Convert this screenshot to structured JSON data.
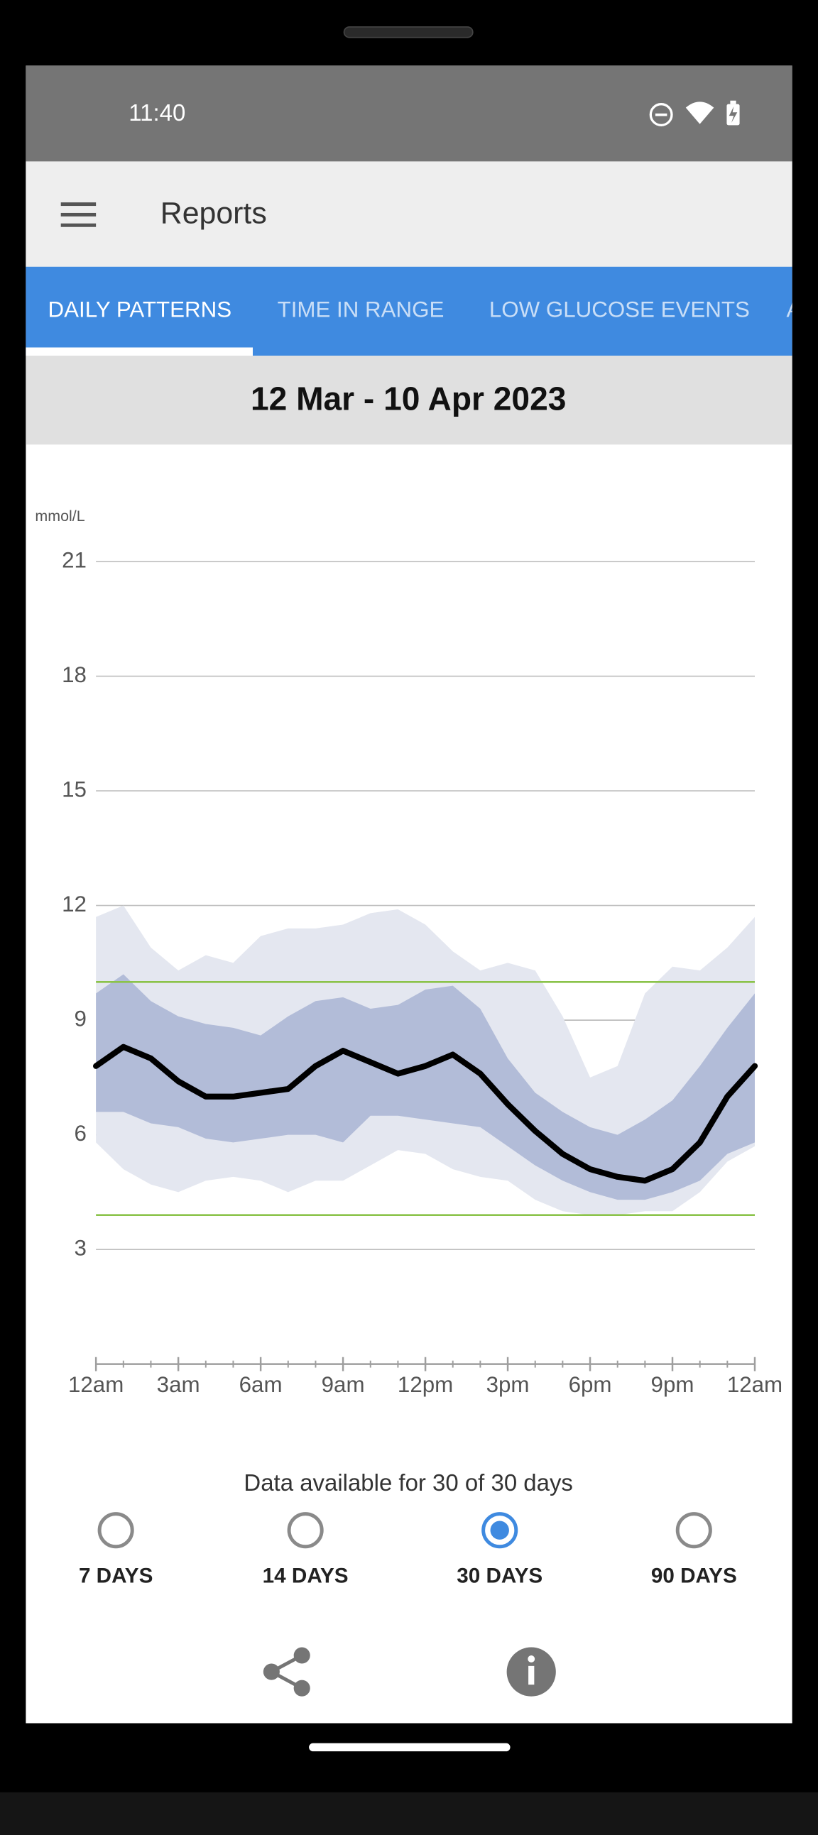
{
  "status_bar": {
    "time": "11:40"
  },
  "app_bar": {
    "title": "Reports"
  },
  "tabs": {
    "items": [
      "DAILY PATTERNS",
      "TIME IN RANGE",
      "LOW GLUCOSE EVENTS",
      "A"
    ],
    "selected": 0
  },
  "date_range": "12 Mar - 10 Apr 2023",
  "chart_data": {
    "type": "line",
    "ylabel": "mmol/L",
    "x": [
      0,
      1,
      2,
      3,
      4,
      5,
      6,
      7,
      8,
      9,
      10,
      11,
      12,
      13,
      14,
      15,
      16,
      17,
      18,
      19,
      20,
      21,
      22,
      23,
      24
    ],
    "xlim": [
      0,
      24
    ],
    "xticks": [
      {
        "value": 0,
        "label": "12am"
      },
      {
        "value": 3,
        "label": "3am"
      },
      {
        "value": 6,
        "label": "6am"
      },
      {
        "value": 9,
        "label": "9am"
      },
      {
        "value": 12,
        "label": "12pm"
      },
      {
        "value": 15,
        "label": "3pm"
      },
      {
        "value": 18,
        "label": "6pm"
      },
      {
        "value": 21,
        "label": "9pm"
      },
      {
        "value": 24,
        "label": "12am"
      }
    ],
    "xminor_ticks": [
      0,
      1,
      2,
      3,
      4,
      5,
      6,
      7,
      8,
      9,
      10,
      11,
      12,
      13,
      14,
      15,
      16,
      17,
      18,
      19,
      20,
      21,
      22,
      23,
      24
    ],
    "ylim": [
      0,
      21
    ],
    "yticks": [
      3,
      6,
      9,
      12,
      15,
      18,
      21
    ],
    "grid": true,
    "target_range": {
      "values": [
        3.9,
        10
      ],
      "color": "#8bc34a"
    },
    "bands": [
      {
        "color": "#e4e7f0",
        "high": [
          11.7,
          12.0,
          10.9,
          10.3,
          10.7,
          10.5,
          11.2,
          11.4,
          11.4,
          11.5,
          11.8,
          11.9,
          11.5,
          10.8,
          10.3,
          10.5,
          10.3,
          9.1,
          7.5,
          7.8,
          9.7,
          10.4,
          10.3,
          10.9,
          11.7
        ],
        "low": [
          5.8,
          5.1,
          4.7,
          4.5,
          4.8,
          4.9,
          4.8,
          4.5,
          4.8,
          4.8,
          5.2,
          5.6,
          5.5,
          5.1,
          4.9,
          4.8,
          4.3,
          4.0,
          3.9,
          3.9,
          4.0,
          4.0,
          4.5,
          5.3,
          5.7
        ]
      },
      {
        "color": "#b2bcd8",
        "high": [
          9.7,
          10.2,
          9.5,
          9.1,
          8.9,
          8.8,
          8.6,
          9.1,
          9.5,
          9.6,
          9.3,
          9.4,
          9.8,
          9.9,
          9.3,
          8.0,
          7.1,
          6.6,
          6.2,
          6.0,
          6.4,
          6.9,
          7.8,
          8.8,
          9.7
        ],
        "low": [
          6.6,
          6.6,
          6.3,
          6.2,
          5.9,
          5.8,
          5.9,
          6.0,
          6.0,
          5.8,
          6.5,
          6.5,
          6.4,
          6.3,
          6.2,
          5.7,
          5.2,
          4.8,
          4.5,
          4.3,
          4.3,
          4.5,
          4.8,
          5.5,
          5.8
        ]
      }
    ],
    "series": [
      {
        "color": "#000000",
        "values": [
          7.8,
          8.3,
          8.0,
          7.4,
          7.0,
          7.0,
          7.1,
          7.2,
          7.8,
          8.2,
          7.9,
          7.6,
          7.8,
          8.1,
          7.6,
          6.8,
          6.1,
          5.5,
          5.1,
          4.9,
          4.8,
          5.1,
          5.8,
          7.0,
          7.8
        ]
      }
    ]
  },
  "availability": "Data available for 30 of 30 days",
  "period_options": {
    "items": [
      "7 DAYS",
      "14 DAYS",
      "30 DAYS",
      "90 DAYS"
    ],
    "selected": 2
  }
}
